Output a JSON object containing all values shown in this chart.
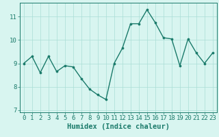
{
  "x": [
    0,
    1,
    2,
    3,
    4,
    5,
    6,
    7,
    8,
    9,
    10,
    11,
    12,
    13,
    14,
    15,
    16,
    17,
    18,
    19,
    20,
    21,
    22,
    23
  ],
  "y": [
    9.0,
    9.3,
    8.6,
    9.3,
    8.65,
    8.9,
    8.85,
    8.35,
    7.9,
    7.65,
    7.45,
    9.0,
    9.65,
    10.7,
    10.7,
    11.3,
    10.75,
    10.1,
    10.05,
    8.9,
    10.05,
    9.45,
    9.0,
    9.45
  ],
  "line_color": "#1a7a6a",
  "marker_color": "#1a7a6a",
  "bg_color": "#d8f5f0",
  "grid_color": "#aaddd5",
  "axis_color": "#1a7a6a",
  "xlabel": "Humidex (Indice chaleur)",
  "ylim": [
    6.9,
    11.6
  ],
  "xlim": [
    -0.5,
    23.5
  ],
  "yticks": [
    7,
    8,
    9,
    10,
    11
  ],
  "xticks": [
    0,
    1,
    2,
    3,
    4,
    5,
    6,
    7,
    8,
    9,
    10,
    11,
    12,
    13,
    14,
    15,
    16,
    17,
    18,
    19,
    20,
    21,
    22,
    23
  ],
  "xlabel_fontsize": 7.5,
  "tick_fontsize": 6.5,
  "marker_size": 2.2,
  "line_width": 1.0
}
